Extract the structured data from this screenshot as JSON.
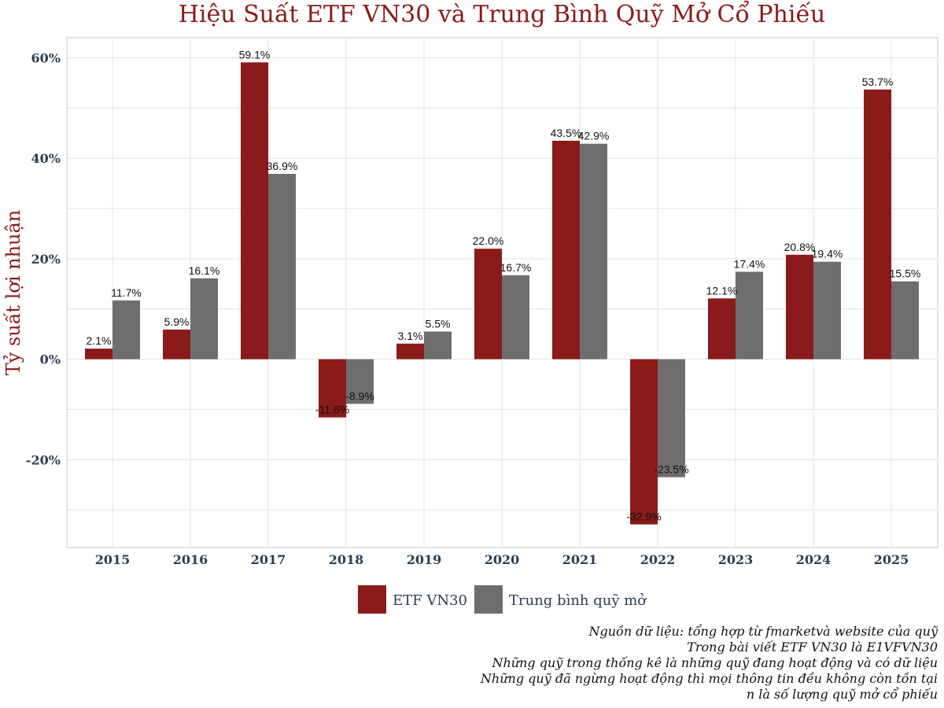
{
  "chart_data": {
    "type": "bar",
    "title": "Hiệu Suất ETF VN30 và Trung Bình Quỹ Mở Cổ Phiếu",
    "xlabel": "",
    "ylabel": "Tỷ suất lợi nhuận",
    "categories": [
      "2015",
      "2016",
      "2017",
      "2018",
      "2019",
      "2020",
      "2021",
      "2022",
      "2023",
      "2024",
      "2025"
    ],
    "series": [
      {
        "name": "ETF VN30",
        "color": "#8b1a1a",
        "values": [
          2.1,
          5.9,
          59.1,
          -11.6,
          3.1,
          22.0,
          43.5,
          -32.9,
          12.1,
          20.8,
          53.7
        ]
      },
      {
        "name": "Trung bình quỹ mở",
        "color": "#6e6e6e",
        "values": [
          11.7,
          16.1,
          36.9,
          -8.9,
          5.5,
          16.7,
          42.9,
          -23.5,
          17.4,
          19.4,
          15.5
        ]
      }
    ],
    "ylim": [
      -37.5,
      64
    ],
    "yticks": [
      -20,
      0,
      20,
      40,
      60
    ],
    "ytick_labels": [
      "-20%",
      "0%",
      "20%",
      "40%",
      "60%"
    ],
    "grid": true,
    "legend_position": "bottom-center"
  },
  "notes": [
    "Nguồn dữ liệu: tổng hợp từ fmarketvà website của quỹ",
    "Trong bài viết ETF VN30 là E1VFVN30",
    "Những quỹ trong thống kê là những quỹ đang hoạt động và có dữ liệu",
    "Những quỹ đã ngừng hoạt động thì mọi thông tin đều không còn tồn tại",
    "n là số lượng quỹ mở cổ phiếu"
  ]
}
